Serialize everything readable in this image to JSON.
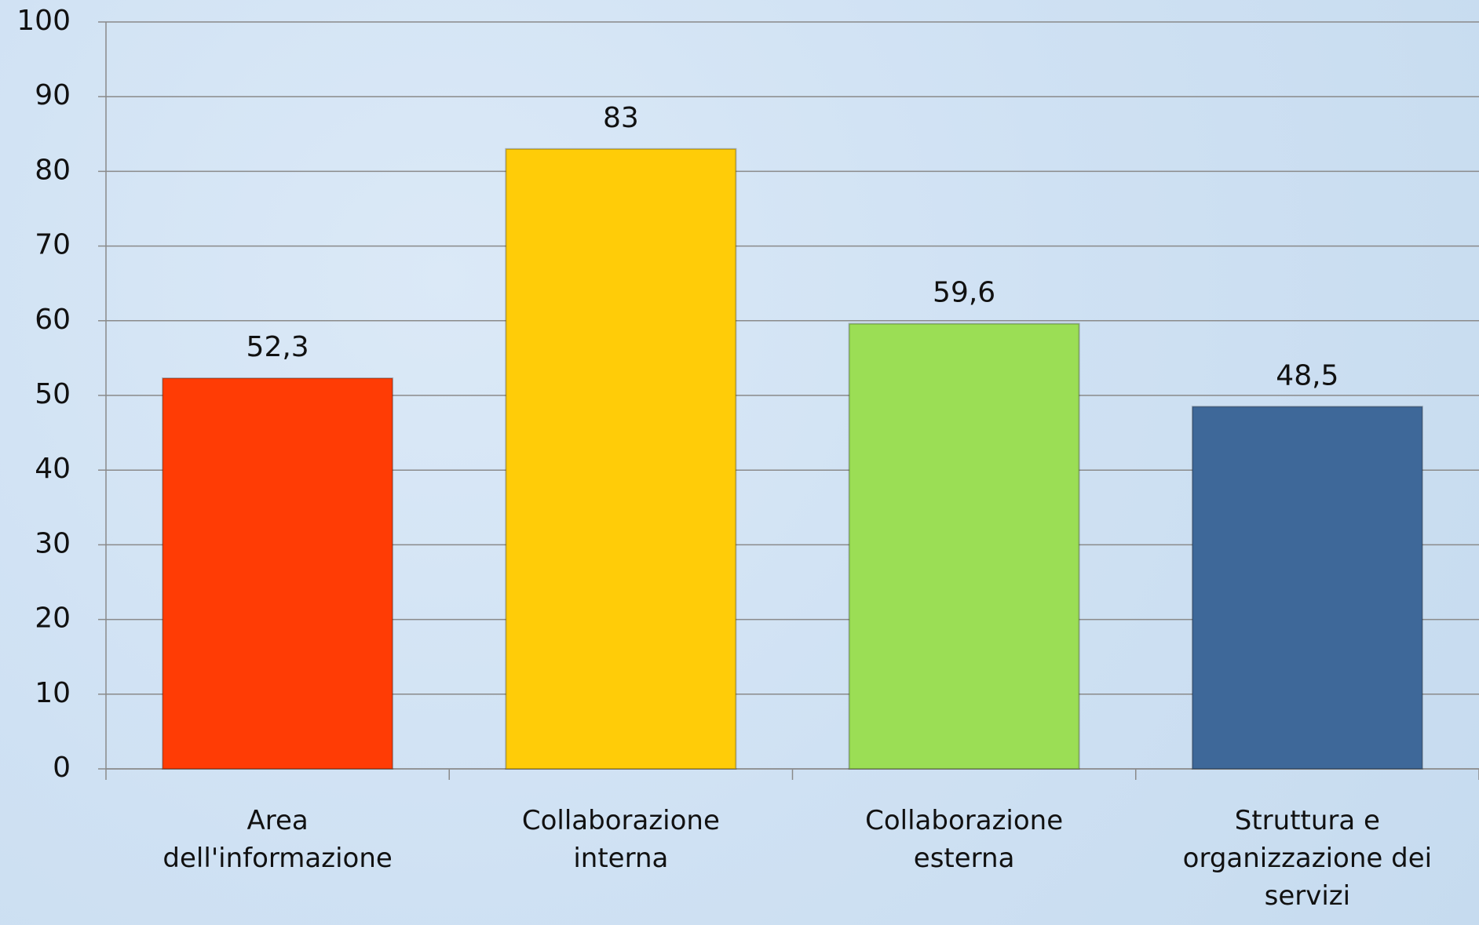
{
  "chart_data": {
    "type": "bar",
    "categories": [
      "Area dell'informazione",
      "Collaborazione interna",
      "Collaborazione esterna",
      "Struttura e organizzazione dei servizi"
    ],
    "values": [
      52.3,
      83,
      59.6,
      48.5
    ],
    "value_labels": [
      "52,3",
      "83",
      "59,6",
      "48,5"
    ],
    "colors": [
      "#ff3c05",
      "#ffcc08",
      "#9bde55",
      "#3e6899"
    ],
    "ylim": [
      0,
      100
    ],
    "yticks": [
      0,
      10,
      20,
      30,
      40,
      50,
      60,
      70,
      80,
      90,
      100
    ],
    "grid": true
  }
}
